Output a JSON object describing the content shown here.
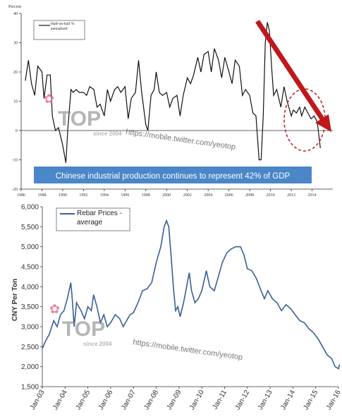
{
  "chart_data": [
    {
      "type": "line",
      "ylabel": "Percent",
      "ylim": [
        -20,
        40
      ],
      "yticks": [
        "40",
        "30",
        "20",
        "10",
        "0",
        "-10",
        "-20"
      ],
      "xlim": [
        1986,
        2016
      ],
      "xticks": [
        "1986",
        "1988",
        "1990",
        "1992",
        "1994",
        "1996",
        "1998",
        "2000",
        "2002",
        "2004",
        "2006",
        "2008",
        "2010",
        "2012",
        "2014"
      ],
      "legend": "Half-on-half % annualised",
      "annotation": "Chinese industrial production continues to represent 42% of GDP",
      "series": [
        {
          "name": "Half-on-half % annualised",
          "color": "#111111",
          "points": [
            [
              1986.4,
              17
            ],
            [
              1986.7,
              24
            ],
            [
              1987.0,
              16
            ],
            [
              1987.3,
              12
            ],
            [
              1987.6,
              22
            ],
            [
              1988.0,
              20
            ],
            [
              1988.2,
              11
            ],
            [
              1988.5,
              19
            ],
            [
              1988.8,
              19
            ],
            [
              1989.0,
              5
            ],
            [
              1989.3,
              0
            ],
            [
              1989.6,
              1
            ],
            [
              1990.0,
              -5
            ],
            [
              1990.3,
              -11
            ],
            [
              1990.5,
              1
            ],
            [
              1990.8,
              14
            ],
            [
              1991.0,
              13
            ],
            [
              1991.3,
              14
            ],
            [
              1991.6,
              13
            ],
            [
              1992.0,
              13
            ],
            [
              1992.3,
              12
            ],
            [
              1992.6,
              15
            ],
            [
              1993.0,
              14
            ],
            [
              1993.3,
              8
            ],
            [
              1993.6,
              9
            ],
            [
              1994.0,
              5
            ],
            [
              1994.3,
              14
            ],
            [
              1994.6,
              10
            ],
            [
              1995.0,
              14
            ],
            [
              1995.3,
              15
            ],
            [
              1995.6,
              13
            ],
            [
              1996.0,
              15
            ],
            [
              1996.3,
              4
            ],
            [
              1996.6,
              11
            ],
            [
              1997.0,
              13
            ],
            [
              1997.3,
              24
            ],
            [
              1997.6,
              13
            ],
            [
              1998.0,
              2
            ],
            [
              1998.2,
              0
            ],
            [
              1998.5,
              12
            ],
            [
              1998.8,
              14
            ],
            [
              1999.0,
              20
            ],
            [
              1999.3,
              13
            ],
            [
              1999.6,
              12
            ],
            [
              2000.0,
              13
            ],
            [
              2000.3,
              8
            ],
            [
              2000.6,
              11
            ],
            [
              2001.0,
              12
            ],
            [
              2001.3,
              5
            ],
            [
              2001.6,
              12
            ],
            [
              2002.0,
              18
            ],
            [
              2002.3,
              16
            ],
            [
              2002.6,
              19
            ],
            [
              2003.0,
              25
            ],
            [
              2003.3,
              20
            ],
            [
              2003.6,
              26
            ],
            [
              2004.0,
              27
            ],
            [
              2004.3,
              20
            ],
            [
              2004.6,
              28
            ],
            [
              2005.0,
              24
            ],
            [
              2005.3,
              18
            ],
            [
              2005.6,
              25
            ],
            [
              2006.0,
              20
            ],
            [
              2006.3,
              16
            ],
            [
              2006.6,
              24
            ],
            [
              2007.0,
              22
            ],
            [
              2007.3,
              12
            ],
            [
              2007.6,
              14
            ],
            [
              2008.0,
              12
            ],
            [
              2008.3,
              6
            ],
            [
              2008.6,
              5
            ],
            [
              2008.9,
              -10
            ],
            [
              2009.1,
              -10
            ],
            [
              2009.3,
              5
            ],
            [
              2009.5,
              30
            ],
            [
              2009.7,
              37
            ],
            [
              2009.9,
              34
            ],
            [
              2010.1,
              22
            ],
            [
              2010.3,
              12
            ],
            [
              2010.6,
              14
            ],
            [
              2011.0,
              8
            ],
            [
              2011.3,
              15
            ],
            [
              2011.6,
              10
            ],
            [
              2012.0,
              5
            ],
            [
              2012.2,
              7
            ],
            [
              2012.5,
              6
            ],
            [
              2012.8,
              8
            ],
            [
              2013.0,
              5
            ],
            [
              2013.3,
              8
            ],
            [
              2013.6,
              6
            ],
            [
              2013.9,
              4
            ],
            [
              2014.2,
              5
            ],
            [
              2014.5,
              3
            ],
            [
              2014.8,
              -6
            ]
          ]
        }
      ]
    },
    {
      "type": "line",
      "ylabel": "CNY Per Ton",
      "ylim": [
        1500,
        6000
      ],
      "yticks": [
        "6,000",
        "5,500",
        "5,000",
        "4,500",
        "4,000",
        "3,500",
        "3,000",
        "2,500",
        "2,000",
        "1,500"
      ],
      "xlim": [
        2003,
        2016
      ],
      "xticks": [
        "Jan-03",
        "Jan-04",
        "Jan-05",
        "Jan-06",
        "Jan-07",
        "Jan-08",
        "Jan-09",
        "Jan-10",
        "Jan-11",
        "Jan-12",
        "Jan-13",
        "Jan-14",
        "Jan-15",
        "Jan-16"
      ],
      "legend": "Rebar Prices - average",
      "series": [
        {
          "name": "Rebar Prices - average",
          "color": "#3a5f95",
          "points": [
            [
              2003.0,
              2450
            ],
            [
              2003.15,
              2650
            ],
            [
              2003.3,
              2800
            ],
            [
              2003.5,
              3150
            ],
            [
              2003.65,
              3000
            ],
            [
              2003.8,
              3300
            ],
            [
              2003.95,
              3400
            ],
            [
              2004.1,
              3700
            ],
            [
              2004.25,
              4100
            ],
            [
              2004.3,
              3800
            ],
            [
              2004.4,
              3000
            ],
            [
              2004.5,
              3600
            ],
            [
              2004.7,
              3400
            ],
            [
              2004.85,
              3200
            ],
            [
              2005.0,
              3500
            ],
            [
              2005.15,
              3400
            ],
            [
              2005.25,
              3800
            ],
            [
              2005.4,
              3500
            ],
            [
              2005.55,
              3100
            ],
            [
              2005.7,
              3300
            ],
            [
              2005.85,
              3000
            ],
            [
              2006.0,
              3100
            ],
            [
              2006.2,
              3300
            ],
            [
              2006.4,
              3200
            ],
            [
              2006.55,
              3000
            ],
            [
              2006.7,
              3150
            ],
            [
              2006.85,
              3300
            ],
            [
              2007.0,
              3350
            ],
            [
              2007.2,
              3600
            ],
            [
              2007.4,
              3900
            ],
            [
              2007.6,
              3950
            ],
            [
              2007.8,
              4100
            ],
            [
              2008.0,
              4600
            ],
            [
              2008.2,
              5000
            ],
            [
              2008.35,
              5500
            ],
            [
              2008.45,
              5650
            ],
            [
              2008.55,
              5500
            ],
            [
              2008.65,
              4800
            ],
            [
              2008.75,
              4000
            ],
            [
              2008.85,
              3400
            ],
            [
              2008.95,
              3500
            ],
            [
              2009.05,
              3250
            ],
            [
              2009.2,
              3600
            ],
            [
              2009.35,
              4050
            ],
            [
              2009.45,
              4350
            ],
            [
              2009.55,
              3900
            ],
            [
              2009.7,
              3600
            ],
            [
              2009.85,
              3700
            ],
            [
              2010.0,
              3900
            ],
            [
              2010.2,
              4400
            ],
            [
              2010.35,
              4000
            ],
            [
              2010.55,
              3900
            ],
            [
              2010.75,
              4300
            ],
            [
              2010.9,
              4600
            ],
            [
              2011.1,
              4850
            ],
            [
              2011.3,
              4950
            ],
            [
              2011.5,
              5000
            ],
            [
              2011.7,
              5000
            ],
            [
              2011.85,
              4800
            ],
            [
              2012.0,
              4450
            ],
            [
              2012.2,
              4400
            ],
            [
              2012.4,
              4200
            ],
            [
              2012.6,
              3900
            ],
            [
              2012.75,
              3700
            ],
            [
              2012.9,
              3900
            ],
            [
              2013.1,
              3700
            ],
            [
              2013.3,
              3600
            ],
            [
              2013.5,
              3400
            ],
            [
              2013.7,
              3550
            ],
            [
              2013.9,
              3450
            ],
            [
              2014.1,
              3300
            ],
            [
              2014.3,
              3150
            ],
            [
              2014.5,
              3100
            ],
            [
              2014.7,
              2950
            ],
            [
              2014.9,
              2850
            ],
            [
              2015.1,
              2700
            ],
            [
              2015.3,
              2500
            ],
            [
              2015.5,
              2300
            ],
            [
              2015.7,
              2200
            ],
            [
              2015.85,
              2000
            ],
            [
              2016.0,
              1950
            ],
            [
              2016.05,
              2050
            ]
          ]
        }
      ]
    }
  ],
  "watermarks": {
    "logo_text": "TOP",
    "logo_sub": "since 2004",
    "url": "https://mobile.twitter.com/yeotop"
  },
  "colors": {
    "arrow": "#c0161c",
    "callout_ellipse": "#c0161c",
    "banner_bg": "#4a86c8",
    "banner_text": "#ffffff"
  }
}
